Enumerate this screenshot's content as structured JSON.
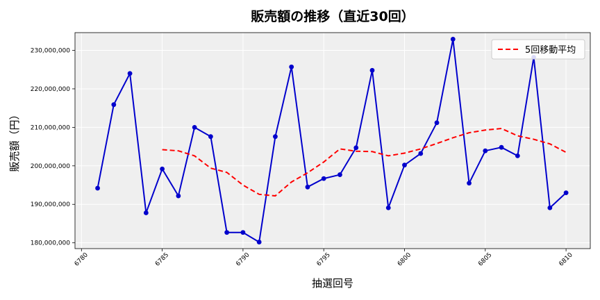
{
  "chart_data": {
    "type": "line",
    "title": "販売額の推移（直近30回）",
    "xlabel": "抽選回号",
    "ylabel": "販売額（円）",
    "x": [
      6781,
      6782,
      6783,
      6784,
      6785,
      6786,
      6787,
      6788,
      6789,
      6790,
      6791,
      6792,
      6793,
      6794,
      6795,
      6796,
      6797,
      6798,
      6799,
      6800,
      6801,
      6802,
      6803,
      6804,
      6805,
      6806,
      6807,
      6808,
      6809,
      6810
    ],
    "series": [
      {
        "name": "",
        "color": "#0000cc",
        "style": "solid-markers",
        "values": [
          194200000,
          215900000,
          224000000,
          187800000,
          199200000,
          192200000,
          210000000,
          207600000,
          182700000,
          182700000,
          180200000,
          207600000,
          225700000,
          194500000,
          196700000,
          197700000,
          204700000,
          224800000,
          189100000,
          200200000,
          203200000,
          211200000,
          232900000,
          195500000,
          203900000,
          204800000,
          202600000,
          228200000,
          189100000,
          193000000
        ]
      },
      {
        "name": "5回移動平均",
        "color": "#ff0000",
        "style": "dashed",
        "values": [
          null,
          null,
          null,
          null,
          204200000,
          203900000,
          202600000,
          199400000,
          198300000,
          195000000,
          192600000,
          192200000,
          195800000,
          198200000,
          201000000,
          204400000,
          203800000,
          203700000,
          202600000,
          203300000,
          204400000,
          205800000,
          207300000,
          208600000,
          209300000,
          209700000,
          207800000,
          206900000,
          205700000,
          203500000
        ]
      }
    ],
    "xlim": [
      6779.6,
      6811.5
    ],
    "ylim": [
      178500000,
      234600000
    ],
    "xticks": [
      6780,
      6785,
      6790,
      6795,
      6800,
      6805,
      6810
    ],
    "yticks": [
      180000000,
      190000000,
      200000000,
      210000000,
      220000000,
      230000000
    ],
    "ytick_labels": [
      "180,000,000",
      "190,000,000",
      "200,000,000",
      "210,000,000",
      "220,000,000",
      "230,000,000"
    ],
    "grid": true,
    "legend_position": "top-right",
    "plot_background": "#efefef"
  }
}
